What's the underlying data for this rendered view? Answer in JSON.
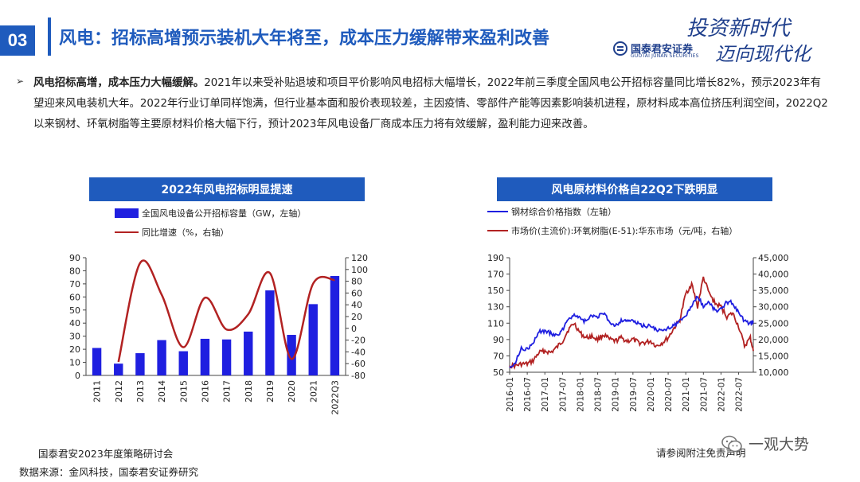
{
  "header": {
    "section_number": "03",
    "title": "风电：招标高增预示装机大年将至，成本压力缓解带来盈利改善"
  },
  "brand": {
    "slogan": "投资新时代 迈向现代化",
    "slogan_line1": "投资新时代",
    "slogan_line2": "迈向现代化",
    "name_cn": "国泰君安证券",
    "name_en": "GUOTAI JUNAN SECURITIES"
  },
  "body": {
    "bold_lead": "风电招标高增，成本压力大幅缓解。",
    "text": "2021年以来受补贴退坡和项目平价影响风电招标大幅增长，2022年前三季度全国风电公开招标容量同比增长82%，预示2023年有望迎来风电装机大年。2022年行业订单同样饱满，但行业基本面和股价表现较差，主因疫情、零部件产能等因素影响装机进程，原材料成本高位挤压利润空间，2022Q2以来钢材、环氧树脂等主要原材料价格大幅下行，预计2023年风电设备厂商成本压力将有效缓解，盈利能力迎来改善。"
  },
  "charts": {
    "left_title": "2022年风电招标明显提速",
    "right_title": "风电原材料价格自22Q2下跌明显"
  },
  "chart_data": [
    {
      "type": "bar",
      "title": "2022年风电招标明显提速",
      "categories": [
        "2011",
        "2012",
        "2013",
        "2014",
        "2015",
        "2016",
        "2017",
        "2018",
        "2019",
        "2020",
        "2021",
        "2022Q3"
      ],
      "series": [
        {
          "name": "全国风电设备公开招标容量（GW，左轴）",
          "type": "bar",
          "axis": "left",
          "color": "#1f1fe0",
          "values": [
            21,
            9,
            17,
            27,
            18.5,
            28,
            27.5,
            33.5,
            65,
            31,
            54.5,
            76
          ]
        },
        {
          "name": "同比增速（%，右轴）",
          "type": "line",
          "axis": "right",
          "color": "#b22222",
          "values": [
            null,
            -57,
            111,
            57,
            -32,
            52,
            -2,
            24,
            94,
            -52,
            76,
            82
          ]
        }
      ],
      "ylim_left": [
        0,
        90
      ],
      "yticks_left": [
        0,
        10,
        20,
        30,
        40,
        50,
        60,
        70,
        80,
        90
      ],
      "ylim_right": [
        -80,
        120
      ],
      "yticks_right": [
        -80,
        -60,
        -40,
        -20,
        0,
        20,
        40,
        60,
        80,
        100,
        120
      ],
      "grid": false,
      "legend": "top-left"
    },
    {
      "type": "line",
      "title": "风电原材料价格自22Q2下跌明显",
      "x_start": "2016-01",
      "x_end": "2022-12",
      "xticks": [
        "2016-01",
        "2016-07",
        "2017-01",
        "2017-07",
        "2018-01",
        "2018-07",
        "2019-01",
        "2019-07",
        "2020-01",
        "2020-07",
        "2021-01",
        "2021-07",
        "2022-01",
        "2022-07"
      ],
      "series": [
        {
          "name": "钢材综合价格指数（左轴）",
          "axis": "left",
          "color": "#1f1fe0",
          "x": [
            "2016-01",
            "2016-03",
            "2016-05",
            "2016-07",
            "2016-09",
            "2016-11",
            "2017-01",
            "2017-03",
            "2017-05",
            "2017-07",
            "2017-09",
            "2017-11",
            "2018-01",
            "2018-03",
            "2018-05",
            "2018-07",
            "2018-09",
            "2018-11",
            "2019-01",
            "2019-03",
            "2019-05",
            "2019-07",
            "2019-09",
            "2019-11",
            "2020-01",
            "2020-03",
            "2020-05",
            "2020-07",
            "2020-09",
            "2020-11",
            "2021-01",
            "2021-03",
            "2021-05",
            "2021-07",
            "2021-09",
            "2021-11",
            "2022-01",
            "2022-03",
            "2022-05",
            "2022-07",
            "2022-09",
            "2022-11",
            "2022-12"
          ],
          "y": [
            57,
            62,
            80,
            78,
            85,
            100,
            100,
            98,
            94,
            102,
            116,
            120,
            115,
            112,
            119,
            118,
            122,
            112,
            107,
            113,
            114,
            112,
            109,
            106,
            107,
            102,
            100,
            104,
            108,
            112,
            119,
            131,
            143,
            131,
            136,
            125,
            127,
            136,
            135,
            122,
            112,
            110,
            112
          ]
        },
        {
          "name": "市场价(主流价):环氧树脂(E-51):华东市场（元/吨，右轴）",
          "axis": "right",
          "color": "#b22222",
          "x": [
            "2016-01",
            "2016-03",
            "2016-05",
            "2016-07",
            "2016-09",
            "2016-11",
            "2017-01",
            "2017-03",
            "2017-05",
            "2017-07",
            "2017-09",
            "2017-11",
            "2018-01",
            "2018-03",
            "2018-05",
            "2018-07",
            "2018-09",
            "2018-11",
            "2019-01",
            "2019-03",
            "2019-05",
            "2019-07",
            "2019-09",
            "2019-11",
            "2020-01",
            "2020-03",
            "2020-05",
            "2020-07",
            "2020-09",
            "2020-11",
            "2021-01",
            "2021-03",
            "2021-05",
            "2021-07",
            "2021-09",
            "2021-11",
            "2022-01",
            "2022-03",
            "2022-05",
            "2022-07",
            "2022-09",
            "2022-11",
            "2022-12"
          ],
          "y": [
            12000,
            12000,
            12500,
            12500,
            13500,
            16000,
            16500,
            16000,
            17500,
            19500,
            23000,
            25000,
            22000,
            20500,
            21000,
            20000,
            21500,
            20000,
            19500,
            20500,
            19500,
            20000,
            19000,
            19000,
            19500,
            18000,
            19000,
            20500,
            23500,
            26000,
            34000,
            37000,
            30000,
            39000,
            34000,
            31000,
            30000,
            27000,
            28000,
            24000,
            18000,
            20500,
            16500
          ]
        }
      ],
      "ylim_left": [
        50,
        190
      ],
      "yticks_left": [
        50,
        70,
        90,
        110,
        130,
        150,
        170,
        190
      ],
      "ylim_right": [
        10000,
        45000
      ],
      "yticks_right": [
        "10,000",
        "15,000",
        "20,000",
        "25,000",
        "30,000",
        "35,000",
        "40,000",
        "45,000"
      ],
      "grid": false,
      "legend": "top-left"
    }
  ],
  "footer": {
    "event": "国泰君安2023年度策略研讨会",
    "source": "数据来源：金风科技，国泰君安证券研究",
    "disclaimer": "请参阅附注免责声明"
  },
  "watermark": {
    "text": "一观大势"
  },
  "colors": {
    "brand_blue": "#1f5bbd",
    "bar_blue": "#1f1fe0",
    "line_red": "#b22222"
  }
}
